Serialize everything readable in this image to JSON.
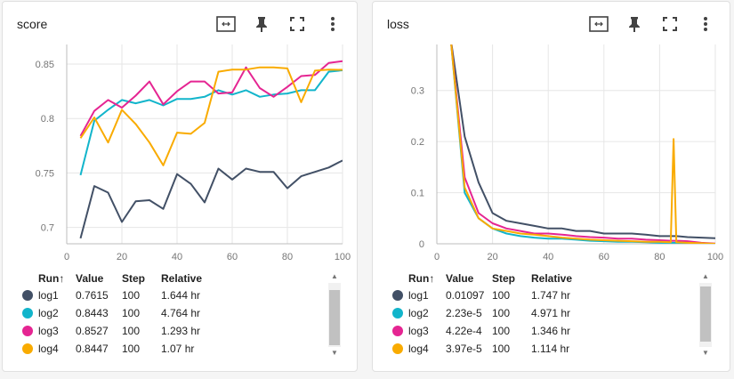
{
  "toolbar_icons": [
    "fit-domain-icon",
    "pin-icon",
    "fullscreen-icon",
    "more-vert-icon"
  ],
  "legend_header": {
    "run": "Run",
    "sort_arrow": "↑",
    "value": "Value",
    "step": "Step",
    "relative": "Relative"
  },
  "runs": [
    {
      "name": "log1",
      "color": "#425066"
    },
    {
      "name": "log2",
      "color": "#12b5cb"
    },
    {
      "name": "log3",
      "color": "#e52592"
    },
    {
      "name": "log4",
      "color": "#f9ab00"
    }
  ],
  "panels": [
    {
      "title": "score",
      "legend": [
        {
          "run": "log1",
          "value": "0.7615",
          "step": "100",
          "relative": "1.644 hr"
        },
        {
          "run": "log2",
          "value": "0.8443",
          "step": "100",
          "relative": "4.764 hr"
        },
        {
          "run": "log3",
          "value": "0.8527",
          "step": "100",
          "relative": "1.293 hr"
        },
        {
          "run": "log4",
          "value": "0.8447",
          "step": "100",
          "relative": "1.07 hr"
        }
      ]
    },
    {
      "title": "loss",
      "legend": [
        {
          "run": "log1",
          "value": "0.01097",
          "step": "100",
          "relative": "1.747 hr"
        },
        {
          "run": "log2",
          "value": "2.23e-5",
          "step": "100",
          "relative": "4.971 hr"
        },
        {
          "run": "log3",
          "value": "4.22e-4",
          "step": "100",
          "relative": "1.346 hr"
        },
        {
          "run": "log4",
          "value": "3.97e-5",
          "step": "100",
          "relative": "1.114 hr"
        }
      ]
    }
  ],
  "chart_data": [
    {
      "type": "line",
      "title": "score",
      "xlim": [
        0,
        100
      ],
      "ylim": [
        0.685,
        0.868
      ],
      "x_ticks": [
        "0",
        "20",
        "40",
        "60",
        "80",
        "100"
      ],
      "y_ticks": [
        "0.7",
        "0.75",
        "0.8",
        "0.85"
      ],
      "grid": true,
      "x": [
        5,
        10,
        15,
        20,
        25,
        30,
        35,
        40,
        45,
        50,
        55,
        60,
        65,
        70,
        75,
        80,
        85,
        90,
        95,
        100
      ],
      "series": [
        {
          "name": "log1",
          "values": [
            0.69,
            0.738,
            0.732,
            0.705,
            0.724,
            0.725,
            0.717,
            0.749,
            0.74,
            0.723,
            0.754,
            0.744,
            0.754,
            0.751,
            0.751,
            0.736,
            0.747,
            0.751,
            0.755,
            0.7615
          ]
        },
        {
          "name": "log2",
          "values": [
            0.748,
            0.798,
            0.808,
            0.817,
            0.814,
            0.817,
            0.812,
            0.818,
            0.818,
            0.82,
            0.826,
            0.822,
            0.826,
            0.82,
            0.822,
            0.823,
            0.826,
            0.826,
            0.843,
            0.8443
          ]
        },
        {
          "name": "log3",
          "values": [
            0.784,
            0.807,
            0.817,
            0.81,
            0.821,
            0.834,
            0.813,
            0.825,
            0.834,
            0.834,
            0.823,
            0.824,
            0.847,
            0.828,
            0.82,
            0.829,
            0.839,
            0.84,
            0.851,
            0.8527
          ]
        },
        {
          "name": "log4",
          "values": [
            0.782,
            0.801,
            0.778,
            0.808,
            0.795,
            0.778,
            0.757,
            0.787,
            0.786,
            0.796,
            0.843,
            0.845,
            0.845,
            0.847,
            0.847,
            0.846,
            0.815,
            0.844,
            0.845,
            0.8447
          ]
        }
      ]
    },
    {
      "type": "line",
      "title": "loss",
      "xlim": [
        0,
        100
      ],
      "ylim": [
        0,
        0.39
      ],
      "x_ticks": [
        "0",
        "20",
        "40",
        "60",
        "80",
        "100"
      ],
      "y_ticks": [
        "0",
        "0.1",
        "0.2",
        "0.3"
      ],
      "grid": true,
      "x": [
        5,
        10,
        15,
        20,
        25,
        30,
        35,
        40,
        45,
        50,
        55,
        60,
        65,
        70,
        75,
        80,
        84,
        85,
        86,
        90,
        95,
        100
      ],
      "series": [
        {
          "name": "log1",
          "values": [
            0.4,
            0.21,
            0.12,
            0.06,
            0.045,
            0.04,
            0.035,
            0.03,
            0.03,
            0.025,
            0.025,
            0.02,
            0.02,
            0.02,
            0.018,
            0.015,
            0.015,
            0.015,
            0.015,
            0.013,
            0.012,
            0.011
          ]
        },
        {
          "name": "log2",
          "values": [
            0.4,
            0.1,
            0.05,
            0.03,
            0.02,
            0.015,
            0.012,
            0.01,
            0.01,
            0.008,
            0.006,
            0.005,
            0.004,
            0.004,
            0.003,
            0.002,
            0.002,
            0.002,
            0.002,
            0.001,
            0.0,
            0.0
          ]
        },
        {
          "name": "log3",
          "values": [
            0.4,
            0.13,
            0.06,
            0.04,
            0.03,
            0.025,
            0.02,
            0.02,
            0.018,
            0.015,
            0.013,
            0.012,
            0.01,
            0.01,
            0.008,
            0.007,
            0.006,
            0.006,
            0.006,
            0.005,
            0.002,
            0.0004
          ]
        },
        {
          "name": "log4",
          "values": [
            0.4,
            0.11,
            0.05,
            0.03,
            0.025,
            0.02,
            0.018,
            0.015,
            0.012,
            0.01,
            0.008,
            0.007,
            0.006,
            0.005,
            0.004,
            0.004,
            0.003,
            0.205,
            0.003,
            0.002,
            0.001,
            0.0
          ]
        }
      ]
    }
  ]
}
